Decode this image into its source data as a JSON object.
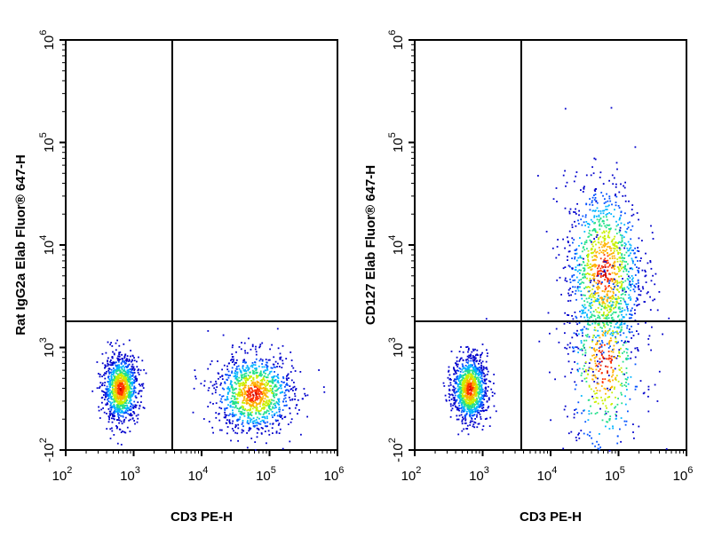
{
  "chart_data": [
    {
      "type": "scatter",
      "xlabel": "CD3 PE-H",
      "ylabel": "Rat IgG2a Elab Fluor® 647-H",
      "x_scale": "log",
      "y_scale": "log",
      "xlim": [
        100,
        1000000
      ],
      "ylim": [
        100,
        1000000
      ],
      "x_ticks": [
        {
          "base": "10",
          "exp": "2"
        },
        {
          "base": "10",
          "exp": "3"
        },
        {
          "base": "10",
          "exp": "4"
        },
        {
          "base": "10",
          "exp": "5"
        },
        {
          "base": "10",
          "exp": "6"
        }
      ],
      "y_ticks": [
        {
          "base": "-10",
          "exp": "2"
        },
        {
          "base": "10",
          "exp": "3"
        },
        {
          "base": "10",
          "exp": "4"
        },
        {
          "base": "10",
          "exp": "5"
        },
        {
          "base": "10",
          "exp": "6"
        }
      ],
      "gate": {
        "x": 3700,
        "y": 1800
      },
      "populations": [
        {
          "name": "",
          "center": [
            630,
            400
          ],
          "spread": [
            0.08,
            0.1
          ],
          "count": 1100
        },
        {
          "name": "",
          "center": [
            58000,
            360
          ],
          "spread": [
            0.18,
            0.12
          ],
          "count": 1100
        }
      ]
    },
    {
      "type": "scatter",
      "xlabel": "CD3 PE-H",
      "ylabel": "CD127 Elab Fluor® 647-H",
      "x_scale": "log",
      "y_scale": "log",
      "xlim": [
        100,
        1000000
      ],
      "ylim": [
        100,
        1000000
      ],
      "x_ticks": [
        {
          "base": "10",
          "exp": "2"
        },
        {
          "base": "10",
          "exp": "3"
        },
        {
          "base": "10",
          "exp": "4"
        },
        {
          "base": "10",
          "exp": "5"
        },
        {
          "base": "10",
          "exp": "6"
        }
      ],
      "y_ticks": [
        {
          "base": "-10",
          "exp": "2"
        },
        {
          "base": "10",
          "exp": "3"
        },
        {
          "base": "10",
          "exp": "4"
        },
        {
          "base": "10",
          "exp": "5"
        },
        {
          "base": "10",
          "exp": "6"
        }
      ],
      "gate": {
        "x": 3700,
        "y": 1800
      },
      "populations": [
        {
          "name": "",
          "center": [
            630,
            400
          ],
          "spread": [
            0.08,
            0.1
          ],
          "count": 1100
        },
        {
          "name": "",
          "center": [
            60000,
            5500
          ],
          "spread": [
            0.18,
            0.28
          ],
          "count": 1200
        },
        {
          "name": "",
          "center": [
            60000,
            700
          ],
          "spread": [
            0.18,
            0.3
          ],
          "count": 500
        }
      ]
    }
  ],
  "colors": {
    "ramp": [
      "#0000cc",
      "#0050ff",
      "#00b4ff",
      "#22e08a",
      "#c8ef00",
      "#ffb000",
      "#ff3000",
      "#cc0000"
    ]
  }
}
